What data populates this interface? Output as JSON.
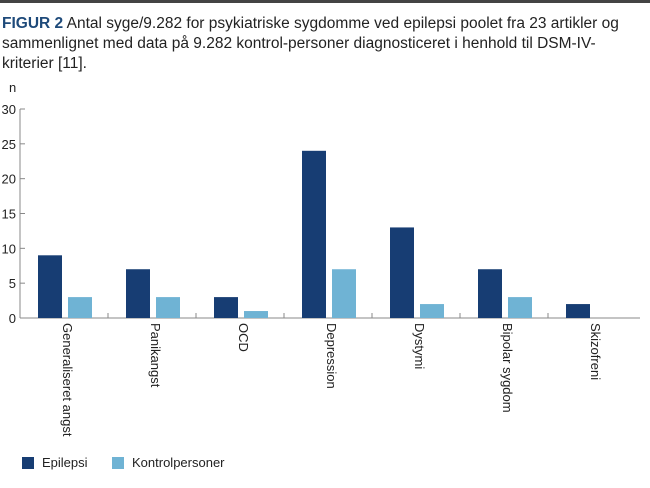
{
  "caption": {
    "label": "FIGUR 2",
    "text": " Antal syge/9.282 for psykiatriske sygdomme ved epilepsi poolet fra 23 artikler og sammenlignet med data på 9.282 kontrol-personer diagnosticeret i henhold til DSM-IV-kriterier [11]."
  },
  "chart_data": {
    "type": "bar",
    "title": "",
    "ylabel": "n",
    "xlabel": "",
    "ylim": [
      0,
      30
    ],
    "yticks": [
      0,
      5,
      10,
      15,
      20,
      25,
      30
    ],
    "categories": [
      "Generaliseret angst",
      "Panikangst",
      "OCD",
      "Depression",
      "Dystymi",
      "Bipolar sygdom",
      "Skizofreni"
    ],
    "series": [
      {
        "name": "Epilepsi",
        "color": "#173d73",
        "values": [
          9,
          7,
          3,
          24,
          13,
          7,
          2
        ]
      },
      {
        "name": "Kontrolpersoner",
        "color": "#6fb3d4",
        "values": [
          3,
          3,
          1,
          7,
          2,
          3,
          0
        ]
      }
    ],
    "legend": "bottom-left",
    "grid": false
  }
}
